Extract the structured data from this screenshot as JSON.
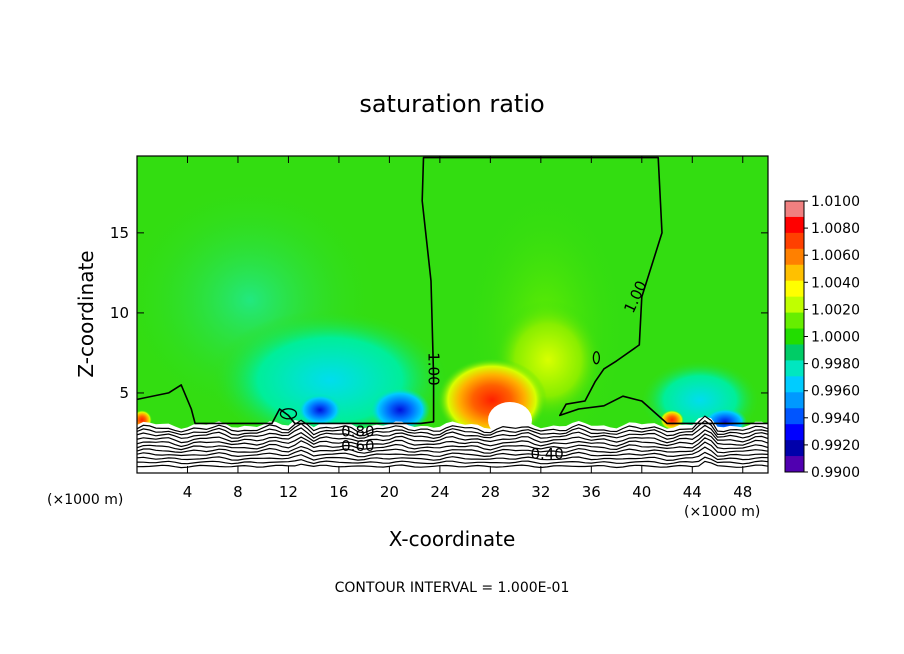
{
  "chart_data": {
    "type": "heatmap",
    "title": "saturation ratio",
    "xlabel": "X-coordinate",
    "ylabel": "Z-coordinate",
    "x_unit_label_left": "(×1000 m)",
    "x_unit_label_right": "(×1000 m)",
    "xlim": [
      0,
      50
    ],
    "ylim": [
      0,
      19.8
    ],
    "xticks": [
      4,
      8,
      12,
      16,
      20,
      24,
      28,
      32,
      36,
      40,
      44,
      48
    ],
    "yticks": [
      5,
      10,
      15
    ],
    "colorbar": {
      "ticks": [
        "1.0100",
        "1.0080",
        "1.0060",
        "1.0040",
        "1.0020",
        "1.0000",
        "0.9980",
        "0.9960",
        "0.9940",
        "0.9920",
        "0.9900"
      ],
      "colors": [
        "#f08080",
        "#ff0000",
        "#ff4000",
        "#ff8000",
        "#ffc000",
        "#ffff00",
        "#c0ff00",
        "#66ee00",
        "#22dd00",
        "#00cc66",
        "#00e6c0",
        "#00ccff",
        "#0099ff",
        "#0055ff",
        "#0000ff",
        "#0000aa",
        "#5000b0"
      ]
    },
    "background_value_color": "#33dd11",
    "contour_labels": [
      {
        "text": "1.00",
        "x": 23.5,
        "y": 6.5,
        "rotate": 90
      },
      {
        "text": "1.00",
        "x": 39.5,
        "y": 11.0,
        "rotate": -65
      },
      {
        "text": "0.80",
        "x": 17.5,
        "y": 2.6,
        "rotate": 0
      },
      {
        "text": "0.60",
        "x": 17.5,
        "y": 1.7,
        "rotate": 0
      },
      {
        "text": "0.40",
        "x": 32.5,
        "y": 1.2,
        "rotate": 0
      }
    ],
    "main_contour_1_00": [
      [
        0,
        4.6
      ],
      [
        2.5,
        5.0
      ],
      [
        3.5,
        5.5
      ],
      [
        4.3,
        4.0
      ],
      [
        4.6,
        3.1
      ],
      [
        10.7,
        3.1
      ],
      [
        11.3,
        4.0
      ],
      [
        12,
        3.6
      ],
      [
        12.5,
        3.1
      ],
      [
        22.5,
        3.1
      ],
      [
        23.5,
        3.2
      ],
      [
        23.5,
        6.0
      ],
      [
        23.3,
        12
      ],
      [
        22.6,
        17
      ],
      [
        22.7,
        19.7
      ],
      [
        41.3,
        19.7
      ],
      [
        41.6,
        15
      ],
      [
        40,
        11
      ],
      [
        39.8,
        8
      ],
      [
        38,
        7
      ],
      [
        37,
        6.5
      ],
      [
        36.3,
        5.7
      ],
      [
        35.5,
        4.5
      ],
      [
        34,
        4.3
      ],
      [
        33.5,
        3.6
      ],
      [
        35,
        4.0
      ],
      [
        37,
        4.2
      ],
      [
        38.5,
        4.8
      ],
      [
        40,
        4.5
      ],
      [
        42,
        3.1
      ],
      [
        50,
        3.1
      ]
    ],
    "footer": "CONTOUR INTERVAL = 1.000E-01"
  }
}
